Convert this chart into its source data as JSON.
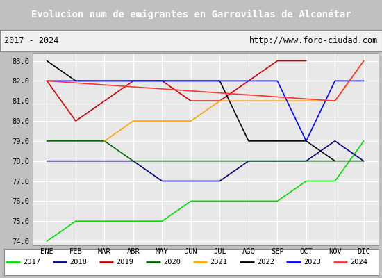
{
  "title": "Evolucion num de emigrantes en Garrovillas de Alconétar",
  "subtitle_left": "2017 - 2024",
  "subtitle_right": "http://www.foro-ciudad.com",
  "x_labels": [
    "ENE",
    "FEB",
    "MAR",
    "ABR",
    "MAY",
    "JUN",
    "JUL",
    "AGO",
    "SEP",
    "OCT",
    "NOV",
    "DIC"
  ],
  "ylim": [
    73.8,
    83.4
  ],
  "yticks": [
    74.0,
    75.0,
    76.0,
    77.0,
    78.0,
    79.0,
    80.0,
    81.0,
    82.0,
    83.0
  ],
  "series": [
    {
      "label": "2017",
      "color": "#00dd00",
      "data": [
        74.0,
        75.0,
        75.0,
        75.0,
        75.0,
        76.0,
        76.0,
        76.0,
        76.0,
        77.0,
        77.0,
        79.0
      ]
    },
    {
      "label": "2018",
      "color": "#000080",
      "data": [
        78.0,
        78.0,
        78.0,
        78.0,
        77.0,
        77.0,
        77.0,
        78.0,
        78.0,
        78.0,
        79.0,
        78.0
      ]
    },
    {
      "label": "2019",
      "color": "#cc0000",
      "data": [
        82.0,
        80.0,
        81.0,
        82.0,
        82.0,
        81.0,
        81.0,
        82.0,
        83.0,
        83.0,
        null,
        null
      ]
    },
    {
      "label": "2020",
      "color": "#006400",
      "data": [
        79.0,
        79.0,
        79.0,
        78.0,
        78.0,
        78.0,
        78.0,
        78.0,
        78.0,
        78.0,
        78.0,
        78.0
      ]
    },
    {
      "label": "2021",
      "color": "#ffa500",
      "data": [
        null,
        null,
        79.0,
        80.0,
        80.0,
        80.0,
        81.0,
        81.0,
        81.0,
        81.0,
        81.0,
        83.0
      ]
    },
    {
      "label": "2022",
      "color": "#000000",
      "data": [
        83.0,
        82.0,
        82.0,
        82.0,
        82.0,
        82.0,
        82.0,
        79.0,
        79.0,
        79.0,
        78.0,
        null
      ]
    },
    {
      "label": "2023",
      "color": "#0000ff",
      "data": [
        82.0,
        82.0,
        82.0,
        82.0,
        82.0,
        82.0,
        82.0,
        82.0,
        82.0,
        79.0,
        82.0,
        82.0
      ]
    },
    {
      "label": "2024",
      "color": "#ff3333",
      "data": [
        82.0,
        null,
        null,
        null,
        null,
        null,
        null,
        null,
        null,
        null,
        81.0,
        83.0
      ]
    }
  ],
  "title_bg_color": "#4477cc",
  "title_fg_color": "#ffffff",
  "subtitle_bg_color": "#f0f0f0",
  "plot_bg_color": "#e8e8e8",
  "grid_color": "#ffffff",
  "legend_bg_color": "#ffffff"
}
